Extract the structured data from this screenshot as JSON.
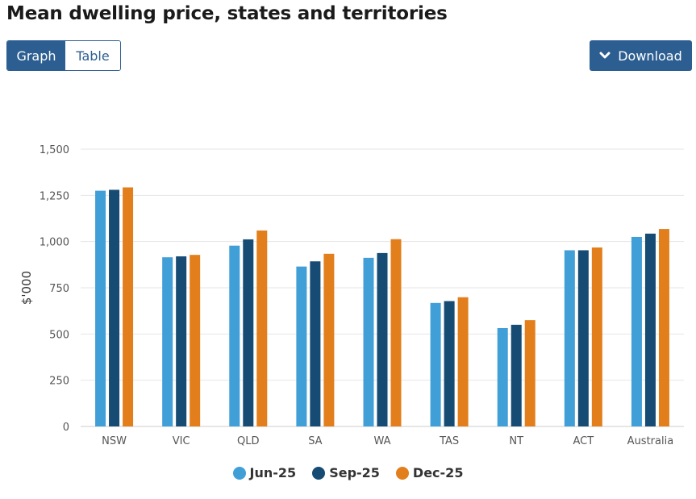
{
  "header": {
    "title": "Mean dwelling price, states and territories"
  },
  "view_toggle": {
    "graph_label": "Graph",
    "table_label": "Table",
    "active": "Graph"
  },
  "toolbar": {
    "download_label": "Download",
    "download_icon": "chevron-down-icon"
  },
  "colors": {
    "accent": "#2c5e91",
    "grid": "#e6e6e6"
  },
  "chart_data": {
    "type": "bar",
    "title": "Mean dwelling price, states and territories",
    "xlabel": "",
    "ylabel": "$'000",
    "ylim": [
      0,
      1500
    ],
    "yticks": [
      0,
      250,
      500,
      750,
      1000,
      1250,
      1500
    ],
    "ytick_labels": [
      "0",
      "250",
      "500",
      "750",
      "1,000",
      "1,250",
      "1,500"
    ],
    "grid": true,
    "legend_position": "bottom",
    "categories": [
      "NSW",
      "VIC",
      "QLD",
      "SA",
      "WA",
      "TAS",
      "NT",
      "ACT",
      "Australia"
    ],
    "series": [
      {
        "name": "Jun-25",
        "color": "#419fd8",
        "values": [
          1275,
          915,
          978,
          865,
          912,
          668,
          532,
          953,
          1025
        ]
      },
      {
        "name": "Sep-25",
        "color": "#164b73",
        "values": [
          1280,
          920,
          1012,
          893,
          938,
          678,
          550,
          953,
          1043
        ]
      },
      {
        "name": "Dec-25",
        "color": "#e27f1c",
        "values": [
          1293,
          928,
          1060,
          934,
          1013,
          699,
          575,
          968,
          1068
        ]
      }
    ]
  }
}
